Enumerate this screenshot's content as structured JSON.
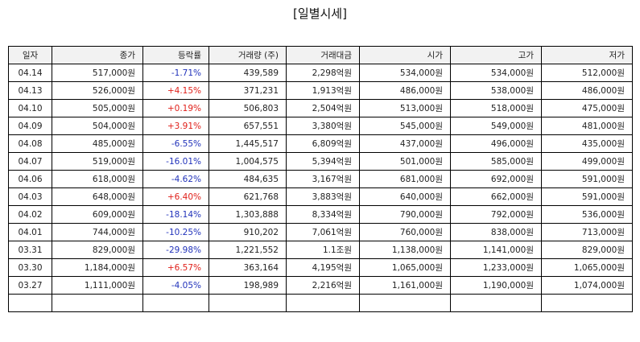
{
  "title": "[일별시세]",
  "colors": {
    "up": "#e0201a",
    "down": "#2233bb",
    "header_bg": "#f2f2f2"
  },
  "columns": [
    "일자",
    "종가",
    "등락률",
    "거래량 (주)",
    "거래대금",
    "시가",
    "고가",
    "저가"
  ],
  "rows": [
    {
      "date": "04.14",
      "close": "517,000원",
      "change": "-1.71%",
      "dir": "down",
      "volume": "439,589",
      "amount": "2,298억원",
      "open": "534,000원",
      "high": "534,000원",
      "low": "512,000원"
    },
    {
      "date": "04.13",
      "close": "526,000원",
      "change": "+4.15%",
      "dir": "up",
      "volume": "371,231",
      "amount": "1,913억원",
      "open": "486,000원",
      "high": "538,000원",
      "low": "486,000원"
    },
    {
      "date": "04.10",
      "close": "505,000원",
      "change": "+0.19%",
      "dir": "up",
      "volume": "506,803",
      "amount": "2,504억원",
      "open": "513,000원",
      "high": "518,000원",
      "low": "475,000원"
    },
    {
      "date": "04.09",
      "close": "504,000원",
      "change": "+3.91%",
      "dir": "up",
      "volume": "657,551",
      "amount": "3,380억원",
      "open": "545,000원",
      "high": "549,000원",
      "low": "481,000원"
    },
    {
      "date": "04.08",
      "close": "485,000원",
      "change": "-6.55%",
      "dir": "down",
      "volume": "1,445,517",
      "amount": "6,809억원",
      "open": "437,000원",
      "high": "496,000원",
      "low": "435,000원"
    },
    {
      "date": "04.07",
      "close": "519,000원",
      "change": "-16.01%",
      "dir": "down",
      "volume": "1,004,575",
      "amount": "5,394억원",
      "open": "501,000원",
      "high": "585,000원",
      "low": "499,000원"
    },
    {
      "date": "04.06",
      "close": "618,000원",
      "change": "-4.62%",
      "dir": "down",
      "volume": "484,635",
      "amount": "3,167억원",
      "open": "681,000원",
      "high": "692,000원",
      "low": "591,000원"
    },
    {
      "date": "04.03",
      "close": "648,000원",
      "change": "+6.40%",
      "dir": "up",
      "volume": "621,768",
      "amount": "3,883억원",
      "open": "640,000원",
      "high": "662,000원",
      "low": "591,000원"
    },
    {
      "date": "04.02",
      "close": "609,000원",
      "change": "-18.14%",
      "dir": "down",
      "volume": "1,303,888",
      "amount": "8,334억원",
      "open": "790,000원",
      "high": "792,000원",
      "low": "536,000원"
    },
    {
      "date": "04.01",
      "close": "744,000원",
      "change": "-10.25%",
      "dir": "down",
      "volume": "910,202",
      "amount": "7,061억원",
      "open": "760,000원",
      "high": "838,000원",
      "low": "713,000원"
    },
    {
      "date": "03.31",
      "close": "829,000원",
      "change": "-29.98%",
      "dir": "down",
      "volume": "1,221,552",
      "amount": "1.1조원",
      "open": "1,138,000원",
      "high": "1,141,000원",
      "low": "829,000원"
    },
    {
      "date": "03.30",
      "close": "1,184,000원",
      "change": "+6.57%",
      "dir": "up",
      "volume": "363,164",
      "amount": "4,195억원",
      "open": "1,065,000원",
      "high": "1,233,000원",
      "low": "1,065,000원"
    },
    {
      "date": "03.27",
      "close": "1,111,000원",
      "change": "-4.05%",
      "dir": "down",
      "volume": "198,989",
      "amount": "2,216억원",
      "open": "1,161,000원",
      "high": "1,190,000원",
      "low": "1,074,000원"
    },
    {
      "date": "",
      "close": "",
      "change": "",
      "dir": "",
      "volume": "",
      "amount": "",
      "open": "",
      "high": "",
      "low": ""
    }
  ]
}
